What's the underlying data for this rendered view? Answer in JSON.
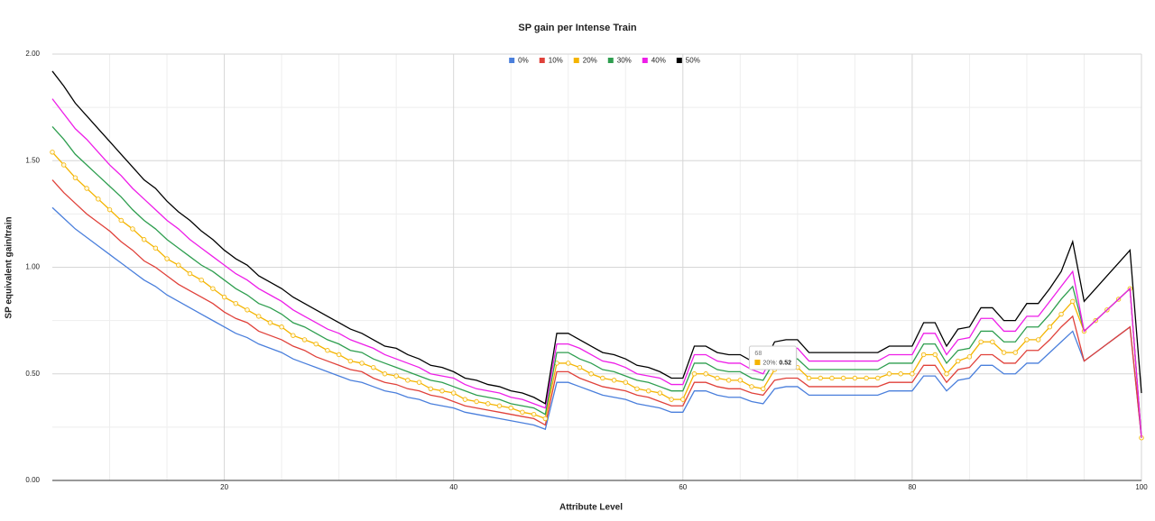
{
  "chart_data": {
    "type": "line",
    "title": "SP gain per Intense Train",
    "xlabel": "Attribute Level",
    "ylabel": "SP equivalent gain/train",
    "x": [
      5,
      6,
      7,
      8,
      9,
      10,
      11,
      12,
      13,
      14,
      15,
      16,
      17,
      18,
      19,
      20,
      21,
      22,
      23,
      24,
      25,
      26,
      27,
      28,
      29,
      30,
      31,
      32,
      33,
      34,
      35,
      36,
      37,
      38,
      39,
      40,
      41,
      42,
      43,
      44,
      45,
      46,
      47,
      48,
      49,
      50,
      51,
      52,
      53,
      54,
      55,
      56,
      57,
      58,
      59,
      60,
      61,
      62,
      63,
      64,
      65,
      66,
      67,
      68,
      69,
      70,
      71,
      72,
      73,
      74,
      75,
      76,
      77,
      78,
      79,
      80,
      81,
      82,
      83,
      84,
      85,
      86,
      87,
      88,
      89,
      90,
      91,
      92,
      93,
      94,
      95,
      96,
      97,
      98,
      99,
      100
    ],
    "xlim": [
      5,
      100
    ],
    "xticks": [
      20,
      40,
      60,
      80,
      100
    ],
    "x_minor_ticks": [
      10,
      15,
      25,
      30,
      35,
      45,
      50,
      55,
      65,
      70,
      75,
      85,
      90,
      95
    ],
    "ylim": [
      0,
      2
    ],
    "yticks": [
      {
        "value": 0,
        "label": "0.00"
      },
      {
        "value": 0.5,
        "label": "0.50"
      },
      {
        "value": 1,
        "label": "1.00"
      },
      {
        "value": 1.5,
        "label": "1.50"
      },
      {
        "value": 2,
        "label": "2.00"
      }
    ],
    "y_minor_ticks": [
      0.25,
      0.75,
      1.25,
      1.75
    ],
    "grid": true,
    "legend": "top",
    "series": [
      {
        "name": "0%",
        "color": "#4a7fdc",
        "values": [
          1.28,
          1.23,
          1.18,
          1.14,
          1.1,
          1.06,
          1.02,
          0.98,
          0.94,
          0.91,
          0.87,
          0.84,
          0.81,
          0.78,
          0.75,
          0.72,
          0.69,
          0.67,
          0.64,
          0.62,
          0.6,
          0.57,
          0.55,
          0.53,
          0.51,
          0.49,
          0.47,
          0.46,
          0.44,
          0.42,
          0.41,
          0.39,
          0.38,
          0.36,
          0.35,
          0.34,
          0.32,
          0.31,
          0.3,
          0.29,
          0.28,
          0.27,
          0.26,
          0.24,
          0.46,
          0.46,
          0.44,
          0.42,
          0.4,
          0.39,
          0.38,
          0.36,
          0.35,
          0.34,
          0.32,
          0.32,
          0.42,
          0.42,
          0.4,
          0.39,
          0.39,
          0.37,
          0.36,
          0.43,
          0.44,
          0.44,
          0.4,
          0.4,
          0.4,
          0.4,
          0.4,
          0.4,
          0.4,
          0.42,
          0.42,
          0.42,
          0.49,
          0.49,
          0.42,
          0.47,
          0.48,
          0.54,
          0.54,
          0.5,
          0.5,
          0.55,
          0.55,
          0.6,
          0.65,
          0.7,
          0.56,
          0.6,
          0.64,
          0.68,
          0.72,
          0.2
        ]
      },
      {
        "name": "10%",
        "color": "#e0413a",
        "values": [
          1.41,
          1.35,
          1.3,
          1.25,
          1.21,
          1.17,
          1.12,
          1.08,
          1.03,
          1.0,
          0.96,
          0.92,
          0.89,
          0.86,
          0.83,
          0.79,
          0.76,
          0.74,
          0.7,
          0.68,
          0.66,
          0.63,
          0.61,
          0.58,
          0.56,
          0.54,
          0.52,
          0.51,
          0.48,
          0.46,
          0.45,
          0.43,
          0.42,
          0.4,
          0.39,
          0.37,
          0.35,
          0.34,
          0.33,
          0.32,
          0.31,
          0.3,
          0.29,
          0.26,
          0.51,
          0.51,
          0.48,
          0.46,
          0.44,
          0.43,
          0.42,
          0.4,
          0.39,
          0.37,
          0.35,
          0.35,
          0.46,
          0.46,
          0.44,
          0.43,
          0.43,
          0.41,
          0.4,
          0.47,
          0.48,
          0.48,
          0.44,
          0.44,
          0.44,
          0.44,
          0.44,
          0.44,
          0.44,
          0.46,
          0.46,
          0.46,
          0.54,
          0.54,
          0.46,
          0.52,
          0.53,
          0.59,
          0.59,
          0.55,
          0.55,
          0.61,
          0.61,
          0.66,
          0.72,
          0.77,
          0.56,
          0.6,
          0.64,
          0.68,
          0.72,
          0.2
        ]
      },
      {
        "name": "20%",
        "color": "#f4b400",
        "markers": true,
        "values": [
          1.54,
          1.48,
          1.42,
          1.37,
          1.32,
          1.27,
          1.22,
          1.18,
          1.13,
          1.09,
          1.04,
          1.01,
          0.97,
          0.94,
          0.9,
          0.86,
          0.83,
          0.8,
          0.77,
          0.74,
          0.72,
          0.68,
          0.66,
          0.64,
          0.61,
          0.59,
          0.56,
          0.55,
          0.53,
          0.5,
          0.49,
          0.47,
          0.46,
          0.43,
          0.42,
          0.41,
          0.38,
          0.37,
          0.36,
          0.35,
          0.34,
          0.32,
          0.31,
          0.29,
          0.55,
          0.55,
          0.53,
          0.5,
          0.48,
          0.47,
          0.46,
          0.43,
          0.42,
          0.41,
          0.38,
          0.38,
          0.5,
          0.5,
          0.48,
          0.47,
          0.47,
          0.44,
          0.43,
          0.52,
          0.53,
          0.53,
          0.48,
          0.48,
          0.48,
          0.48,
          0.48,
          0.48,
          0.48,
          0.5,
          0.5,
          0.5,
          0.59,
          0.59,
          0.5,
          0.56,
          0.58,
          0.65,
          0.65,
          0.6,
          0.6,
          0.66,
          0.66,
          0.72,
          0.78,
          0.84,
          0.7,
          0.75,
          0.8,
          0.85,
          0.9,
          0.2
        ]
      },
      {
        "name": "30%",
        "color": "#2e9e4f",
        "values": [
          1.66,
          1.6,
          1.53,
          1.48,
          1.43,
          1.38,
          1.33,
          1.27,
          1.22,
          1.18,
          1.13,
          1.09,
          1.05,
          1.01,
          0.98,
          0.94,
          0.9,
          0.87,
          0.83,
          0.81,
          0.78,
          0.74,
          0.72,
          0.69,
          0.66,
          0.64,
          0.61,
          0.6,
          0.57,
          0.55,
          0.53,
          0.51,
          0.49,
          0.47,
          0.46,
          0.44,
          0.42,
          0.4,
          0.39,
          0.38,
          0.36,
          0.35,
          0.34,
          0.31,
          0.6,
          0.6,
          0.57,
          0.55,
          0.52,
          0.51,
          0.49,
          0.47,
          0.46,
          0.44,
          0.42,
          0.42,
          0.55,
          0.55,
          0.52,
          0.51,
          0.51,
          0.48,
          0.47,
          0.56,
          0.57,
          0.57,
          0.52,
          0.52,
          0.52,
          0.52,
          0.52,
          0.52,
          0.52,
          0.55,
          0.55,
          0.55,
          0.64,
          0.64,
          0.55,
          0.61,
          0.62,
          0.7,
          0.7,
          0.65,
          0.65,
          0.72,
          0.72,
          0.78,
          0.85,
          0.91,
          0.7,
          0.75,
          0.8,
          0.85,
          0.9,
          0.2
        ]
      },
      {
        "name": "40%",
        "color": "#ee1ee8",
        "values": [
          1.79,
          1.72,
          1.65,
          1.6,
          1.54,
          1.48,
          1.43,
          1.37,
          1.32,
          1.27,
          1.22,
          1.18,
          1.13,
          1.09,
          1.05,
          1.01,
          0.97,
          0.94,
          0.9,
          0.87,
          0.84,
          0.8,
          0.77,
          0.74,
          0.71,
          0.69,
          0.66,
          0.64,
          0.62,
          0.59,
          0.57,
          0.55,
          0.53,
          0.5,
          0.49,
          0.48,
          0.45,
          0.43,
          0.42,
          0.41,
          0.39,
          0.38,
          0.36,
          0.34,
          0.64,
          0.64,
          0.62,
          0.59,
          0.56,
          0.55,
          0.53,
          0.5,
          0.49,
          0.48,
          0.45,
          0.45,
          0.59,
          0.59,
          0.56,
          0.55,
          0.55,
          0.52,
          0.5,
          0.6,
          0.62,
          0.62,
          0.56,
          0.56,
          0.56,
          0.56,
          0.56,
          0.56,
          0.56,
          0.59,
          0.59,
          0.59,
          0.69,
          0.69,
          0.59,
          0.66,
          0.67,
          0.76,
          0.76,
          0.7,
          0.7,
          0.77,
          0.77,
          0.84,
          0.91,
          0.98,
          0.7,
          0.75,
          0.8,
          0.85,
          0.9,
          0.2
        ]
      },
      {
        "name": "50%",
        "color": "#000000",
        "values": [
          1.92,
          1.85,
          1.77,
          1.71,
          1.65,
          1.59,
          1.53,
          1.47,
          1.41,
          1.37,
          1.31,
          1.26,
          1.22,
          1.17,
          1.13,
          1.08,
          1.04,
          1.01,
          0.96,
          0.93,
          0.9,
          0.86,
          0.83,
          0.8,
          0.77,
          0.74,
          0.71,
          0.69,
          0.66,
          0.63,
          0.62,
          0.59,
          0.57,
          0.54,
          0.53,
          0.51,
          0.48,
          0.47,
          0.45,
          0.44,
          0.42,
          0.41,
          0.39,
          0.36,
          0.69,
          0.69,
          0.66,
          0.63,
          0.6,
          0.59,
          0.57,
          0.54,
          0.53,
          0.51,
          0.48,
          0.48,
          0.63,
          0.63,
          0.6,
          0.59,
          0.59,
          0.56,
          0.54,
          0.65,
          0.66,
          0.66,
          0.6,
          0.6,
          0.6,
          0.6,
          0.6,
          0.6,
          0.6,
          0.63,
          0.63,
          0.63,
          0.74,
          0.74,
          0.63,
          0.71,
          0.72,
          0.81,
          0.81,
          0.75,
          0.75,
          0.83,
          0.83,
          0.9,
          0.98,
          1.12,
          0.84,
          0.9,
          0.96,
          1.02,
          1.08,
          0.41
        ]
      }
    ],
    "tooltip": {
      "title": "68",
      "label": "20%:",
      "value": 0.52
    }
  }
}
